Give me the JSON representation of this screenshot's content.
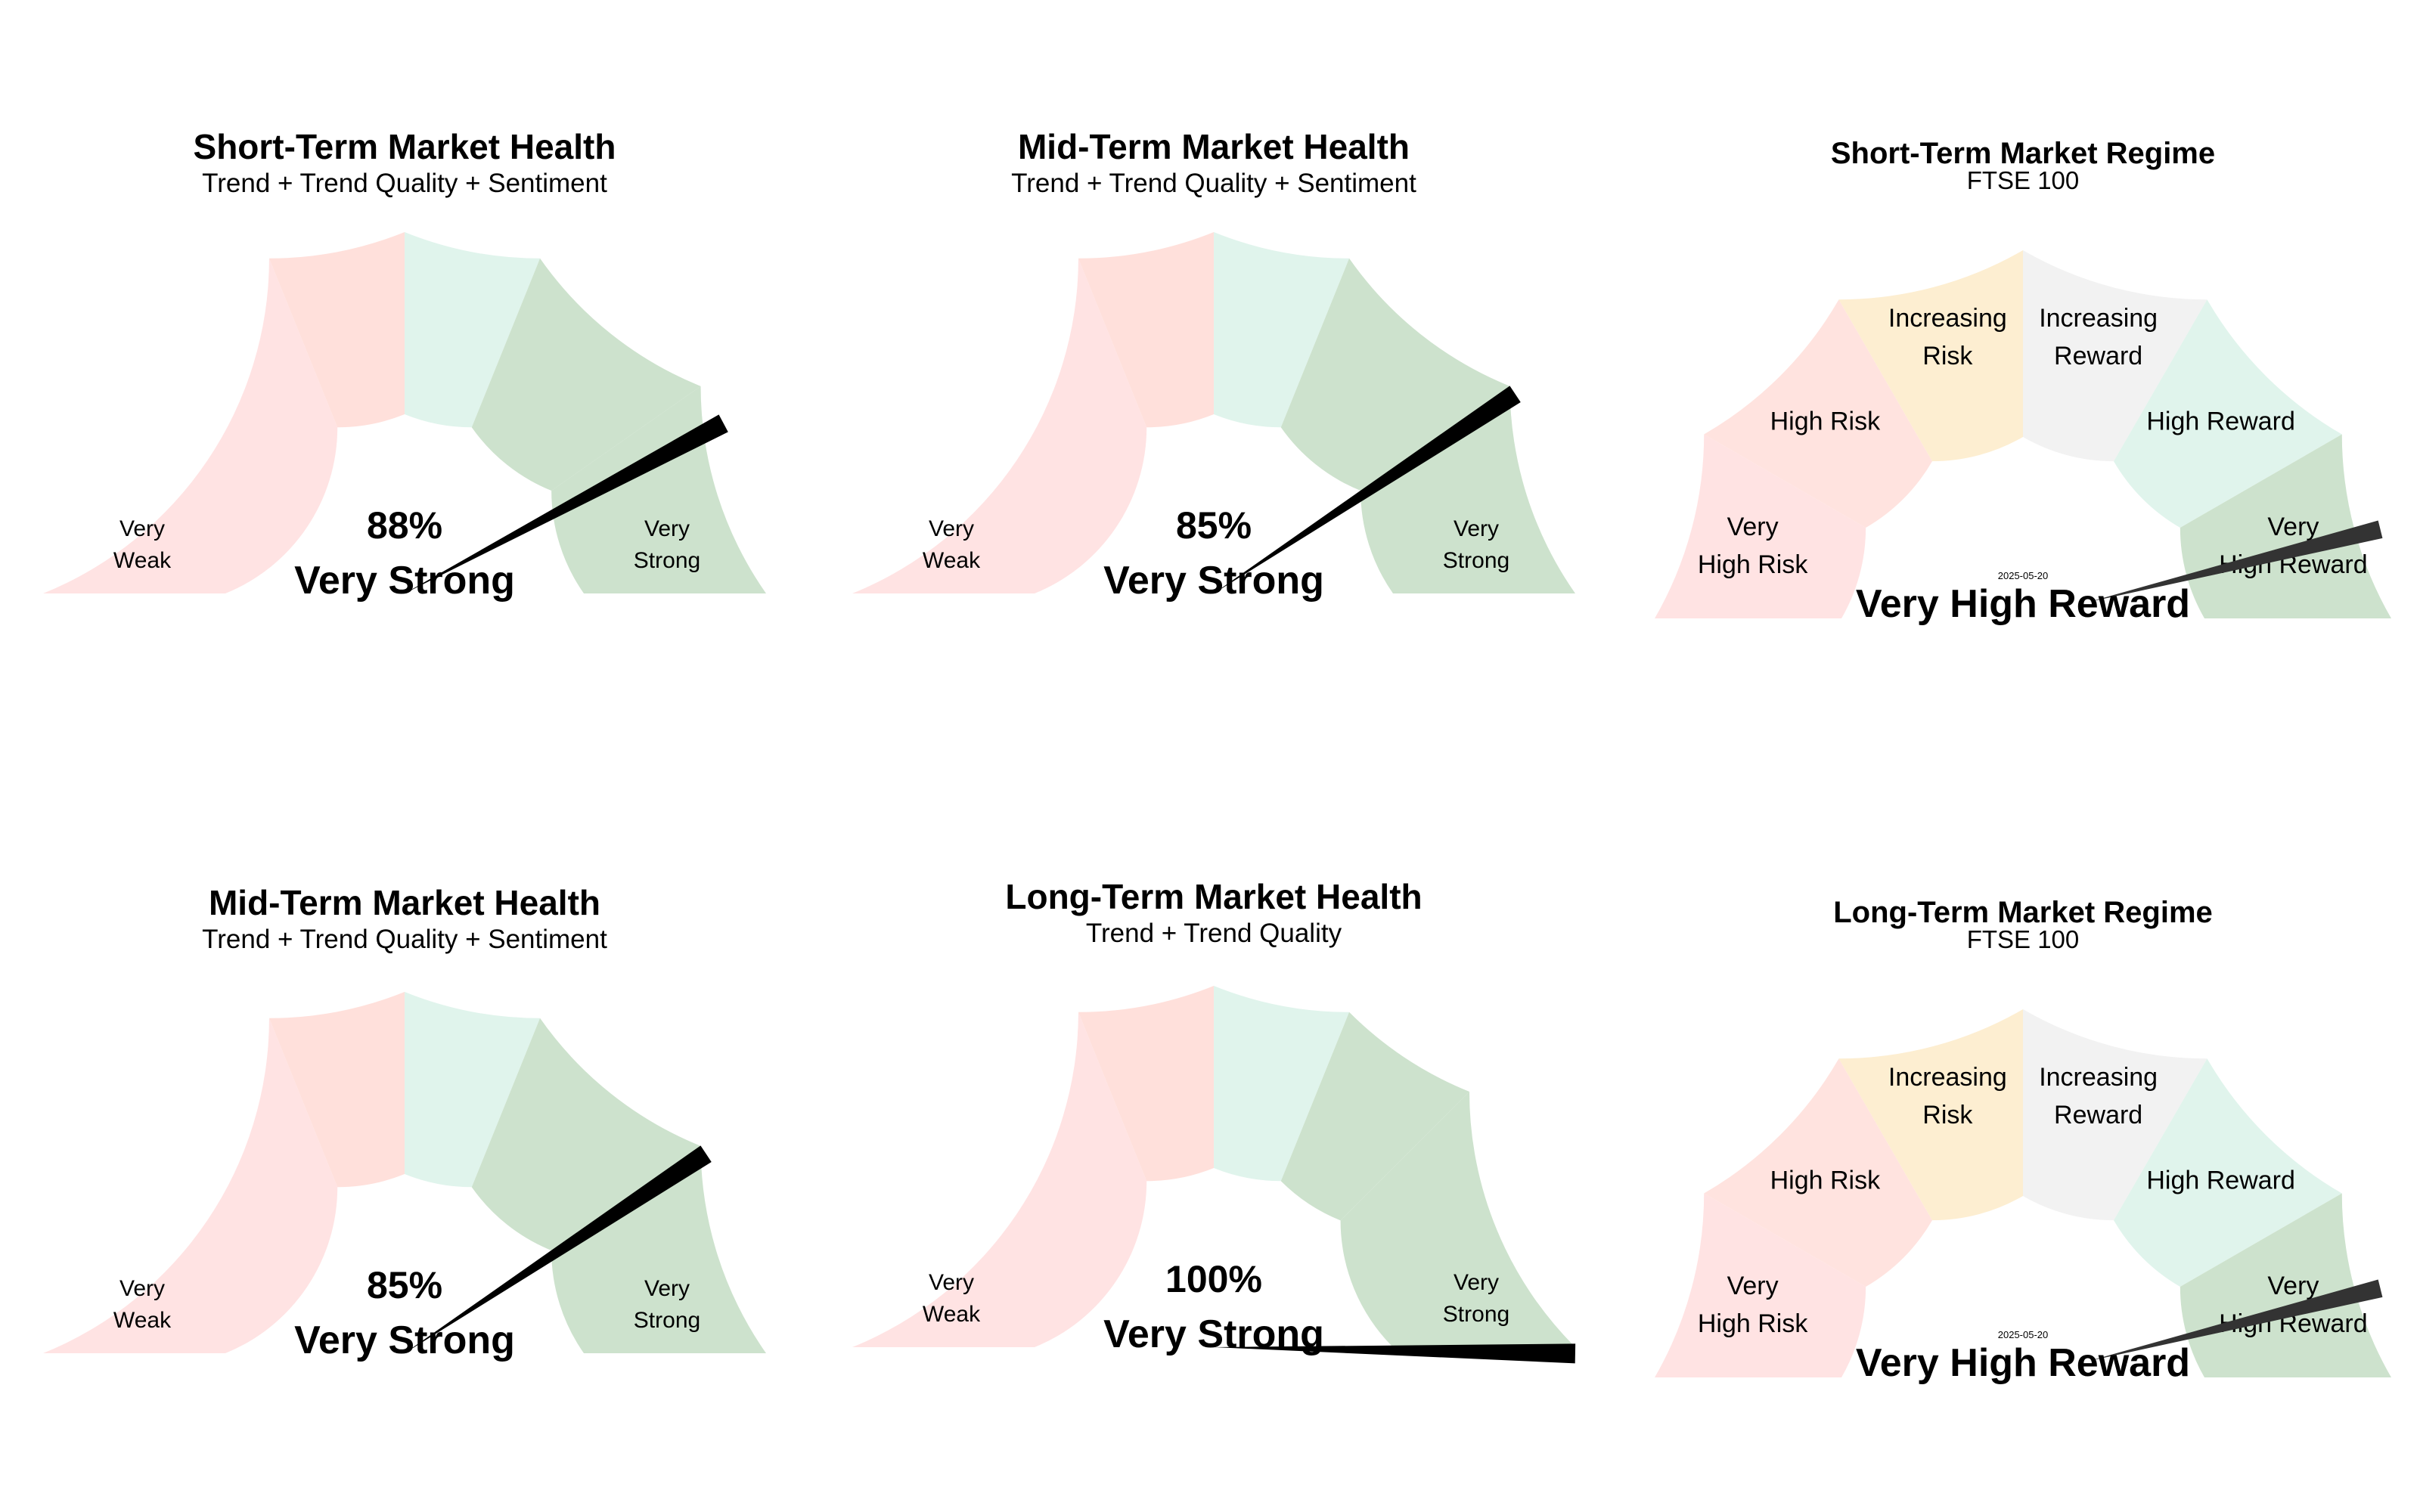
{
  "colors": {
    "very_weak": "#ffe3e3",
    "weak": "#ffe0db",
    "neutral_pos": "#e0f4ec",
    "strong": "#cde2cd",
    "very_strong": "#cde2cd",
    "high_risk": "#ffe3df",
    "increasing_risk": "#fdeed1",
    "increasing_reward": "#f2f2f2",
    "high_reward": "#e0f4ec",
    "very_high_reward": "#cde2cd",
    "needle_health": "#000000",
    "needle_regime": "#333333"
  },
  "chart_data": [
    {
      "type": "gauge",
      "gauge_kind": "health",
      "title": "Short-Term Market Health",
      "subtitle": "Trend + Trend Quality + Sentiment",
      "value_percent": 88,
      "value_text": "88%",
      "status": "Very Strong",
      "zone_labels": {
        "left": [
          "Very",
          "Weak"
        ],
        "right": [
          "Very",
          "Strong"
        ]
      }
    },
    {
      "type": "gauge",
      "gauge_kind": "health",
      "title": "Mid-Term Market Health",
      "subtitle": "Trend + Trend Quality + Sentiment",
      "value_percent": 85,
      "value_text": "85%",
      "status": "Very Strong",
      "zone_labels": {
        "left": [
          "Very",
          "Weak"
        ],
        "right": [
          "Very",
          "Strong"
        ]
      }
    },
    {
      "type": "gauge",
      "gauge_kind": "regime",
      "title": "Short-Term Market Regime",
      "subtitle": "FTSE 100",
      "date": "2025-05-20",
      "status": "Very High Reward",
      "needle_fraction": 0.95,
      "segments": [
        [
          "Very",
          "High Risk"
        ],
        [
          "High Risk"
        ],
        [
          "Increasing",
          "Risk"
        ],
        [
          "Increasing",
          "Reward"
        ],
        [
          "High Reward"
        ],
        [
          "Very",
          "High Reward"
        ]
      ]
    },
    {
      "type": "gauge",
      "gauge_kind": "health",
      "title": "Mid-Term Market Health",
      "subtitle": "Trend + Trend Quality + Sentiment",
      "value_percent": 85,
      "value_text": "85%",
      "status": "Very Strong",
      "zone_labels": {
        "left": [
          "Very",
          "Weak"
        ],
        "right": [
          "Very",
          "Strong"
        ]
      }
    },
    {
      "type": "gauge",
      "gauge_kind": "health",
      "title": "Long-Term Market Health",
      "subtitle": "Trend + Trend Quality",
      "value_percent": 100,
      "value_text": "100%",
      "status": "Very Strong",
      "zone_labels": {
        "left": [
          "Very",
          "Weak"
        ],
        "right": [
          "Very",
          "Strong"
        ]
      }
    },
    {
      "type": "gauge",
      "gauge_kind": "regime",
      "title": "Long-Term Market Regime",
      "subtitle": "FTSE 100",
      "date": "2025-05-20",
      "status": "Very High Reward",
      "needle_fraction": 0.95,
      "segments": [
        [
          "Very",
          "High Risk"
        ],
        [
          "High Risk"
        ],
        [
          "Increasing",
          "Risk"
        ],
        [
          "Increasing",
          "Reward"
        ],
        [
          "High Reward"
        ],
        [
          "Very",
          "High Reward"
        ]
      ]
    }
  ]
}
